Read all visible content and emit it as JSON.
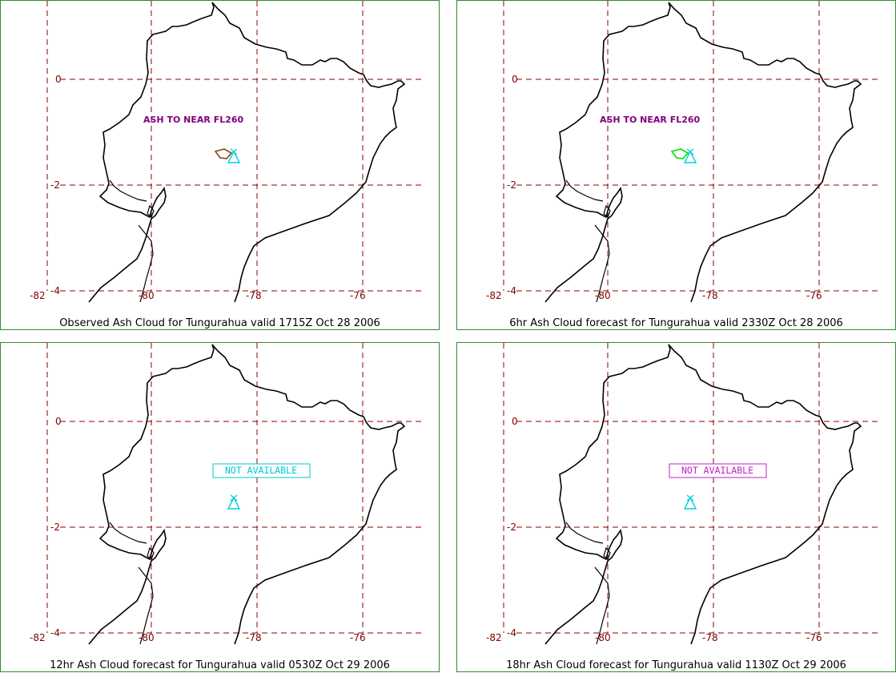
{
  "panels": [
    {
      "caption": "Observed Ash Cloud for Tungurahua valid 1715Z Oct 28 2006",
      "note": "ASH TO NEAR FL260",
      "note_color": "#800080",
      "cloud_color": "#8b4513",
      "status": "",
      "status_color": ""
    },
    {
      "caption": "6hr Ash Cloud forecast for Tungurahua valid 2330Z Oct 28 2006",
      "note": "ASH TO NEAR FL260",
      "note_color": "#800080",
      "cloud_color": "#00e000",
      "status": "",
      "status_color": ""
    },
    {
      "caption": "12hr Ash Cloud forecast for Tungurahua valid 0530Z Oct 29 2006",
      "note": "",
      "note_color": "",
      "cloud_color": "",
      "status": "NOT AVAILABLE",
      "status_color": "#00c8d0"
    },
    {
      "caption": "18hr Ash Cloud forecast for Tungurahua valid 1130Z Oct 29 2006",
      "note": "",
      "note_color": "",
      "cloud_color": "",
      "status": "NOT AVAILABLE",
      "status_color": "#c020c0"
    }
  ],
  "lat_labels": [
    "0",
    "-2",
    "-4"
  ],
  "lon_labels": [
    "-82",
    "-80",
    "-78",
    "-76"
  ],
  "grid_color": "#8b0000",
  "volcano_icon": "volcano-icon",
  "volcano_color": "#00d0e0"
}
